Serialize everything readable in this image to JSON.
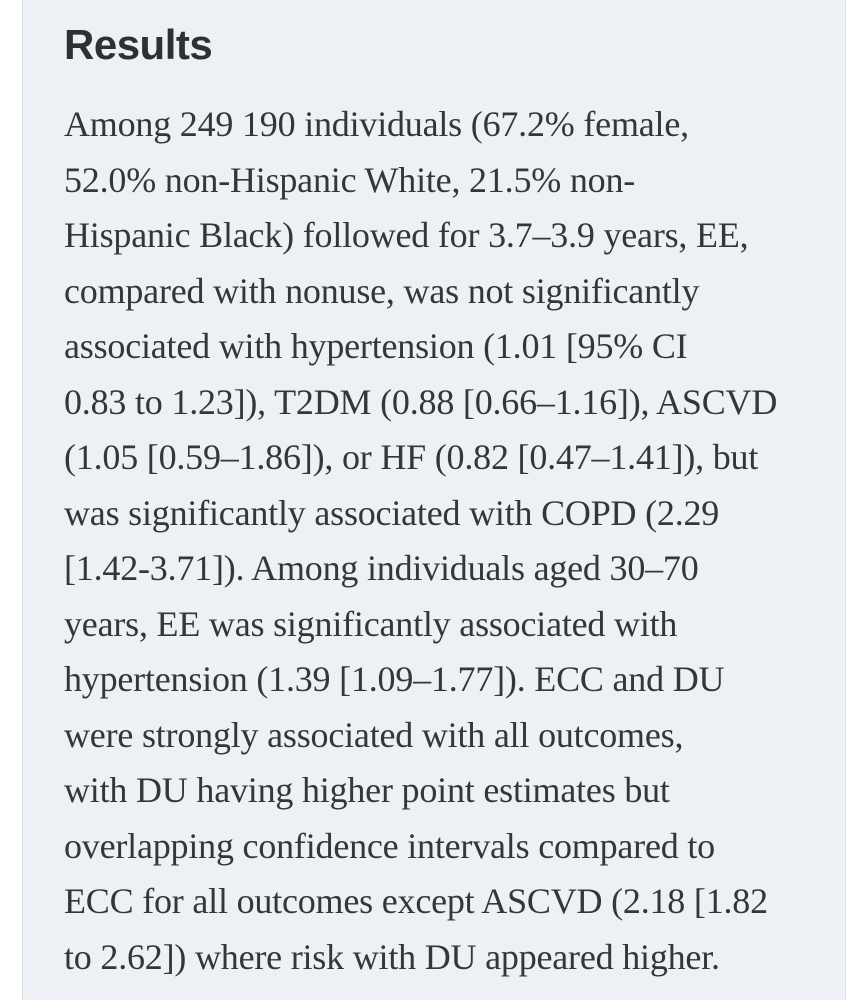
{
  "panel": {
    "background_color": "#edf0f5",
    "heading_color": "#2d3136",
    "body_text_color": "#32373c"
  },
  "section": {
    "heading": "Results",
    "paragraph_lines": [
      "Among 249 190 individuals (67.2% female,",
      "52.0% non-Hispanic White, 21.5% non-",
      "Hispanic Black) followed for 3.7–3.9 years, EE,",
      "compared with nonuse, was not significantly",
      "associated with hypertension (1.01 [95% CI",
      "0.83 to 1.23]), T2DM (0.88 [0.66–1.16]), ASCVD",
      "(1.05 [0.59–1.86]), or HF (0.82 [0.47–1.41]), but",
      "was significantly associated with COPD (2.29",
      "[1.42-3.71]). Among individuals aged 30–70",
      "years, EE was significantly associated with",
      "hypertension (1.39 [1.09–1.77]). ECC and DU",
      "were strongly associated with all outcomes,",
      "with DU having higher point estimates but",
      "overlapping confidence intervals compared to",
      "ECC for all outcomes except ASCVD (2.18 [1.82",
      "to 2.62]) where risk with DU appeared higher."
    ]
  }
}
